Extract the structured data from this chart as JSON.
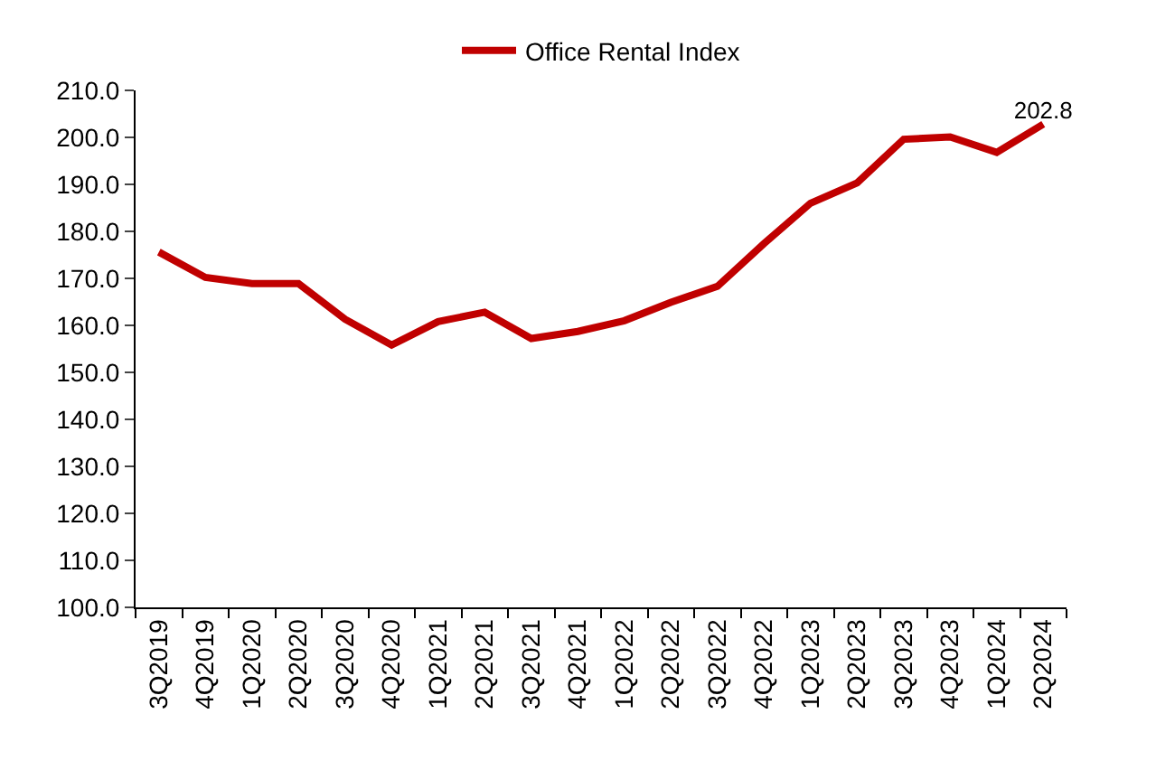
{
  "chart_data": {
    "type": "line",
    "categories": [
      "3Q2019",
      "4Q2019",
      "1Q2020",
      "2Q2020",
      "3Q2020",
      "4Q2020",
      "1Q2021",
      "2Q2021",
      "3Q2021",
      "4Q2021",
      "1Q2022",
      "2Q2022",
      "3Q2022",
      "4Q2022",
      "1Q2023",
      "2Q2023",
      "3Q2023",
      "4Q2023",
      "1Q2024",
      "2Q2024"
    ],
    "series": [
      {
        "name": "Office Rental Index",
        "color": "#c00000",
        "values": [
          175.6,
          170.2,
          168.9,
          168.9,
          161.3,
          155.8,
          160.8,
          162.8,
          157.2,
          158.7,
          161.0,
          164.9,
          168.3,
          177.4,
          186.0,
          190.3,
          199.6,
          200.1,
          196.8,
          202.8
        ],
        "value_labels": [
          null,
          null,
          null,
          null,
          null,
          null,
          null,
          null,
          null,
          null,
          null,
          null,
          null,
          null,
          null,
          null,
          null,
          null,
          null,
          "202.8"
        ]
      }
    ],
    "ylim": [
      100,
      210
    ],
    "yticks": [
      {
        "value": 100,
        "label": "100.0"
      },
      {
        "value": 110,
        "label": "110.0"
      },
      {
        "value": 120,
        "label": "120.0"
      },
      {
        "value": 130,
        "label": "130.0"
      },
      {
        "value": 140,
        "label": "140.0"
      },
      {
        "value": 150,
        "label": "150.0"
      },
      {
        "value": 160,
        "label": "160.0"
      },
      {
        "value": 170,
        "label": "170.0"
      },
      {
        "value": 180,
        "label": "180.0"
      },
      {
        "value": 190,
        "label": "190.0"
      },
      {
        "value": 200,
        "label": "200.0"
      },
      {
        "value": 210,
        "label": "210.0"
      }
    ],
    "legend": "top",
    "marker": "none",
    "line_style": "solid"
  }
}
